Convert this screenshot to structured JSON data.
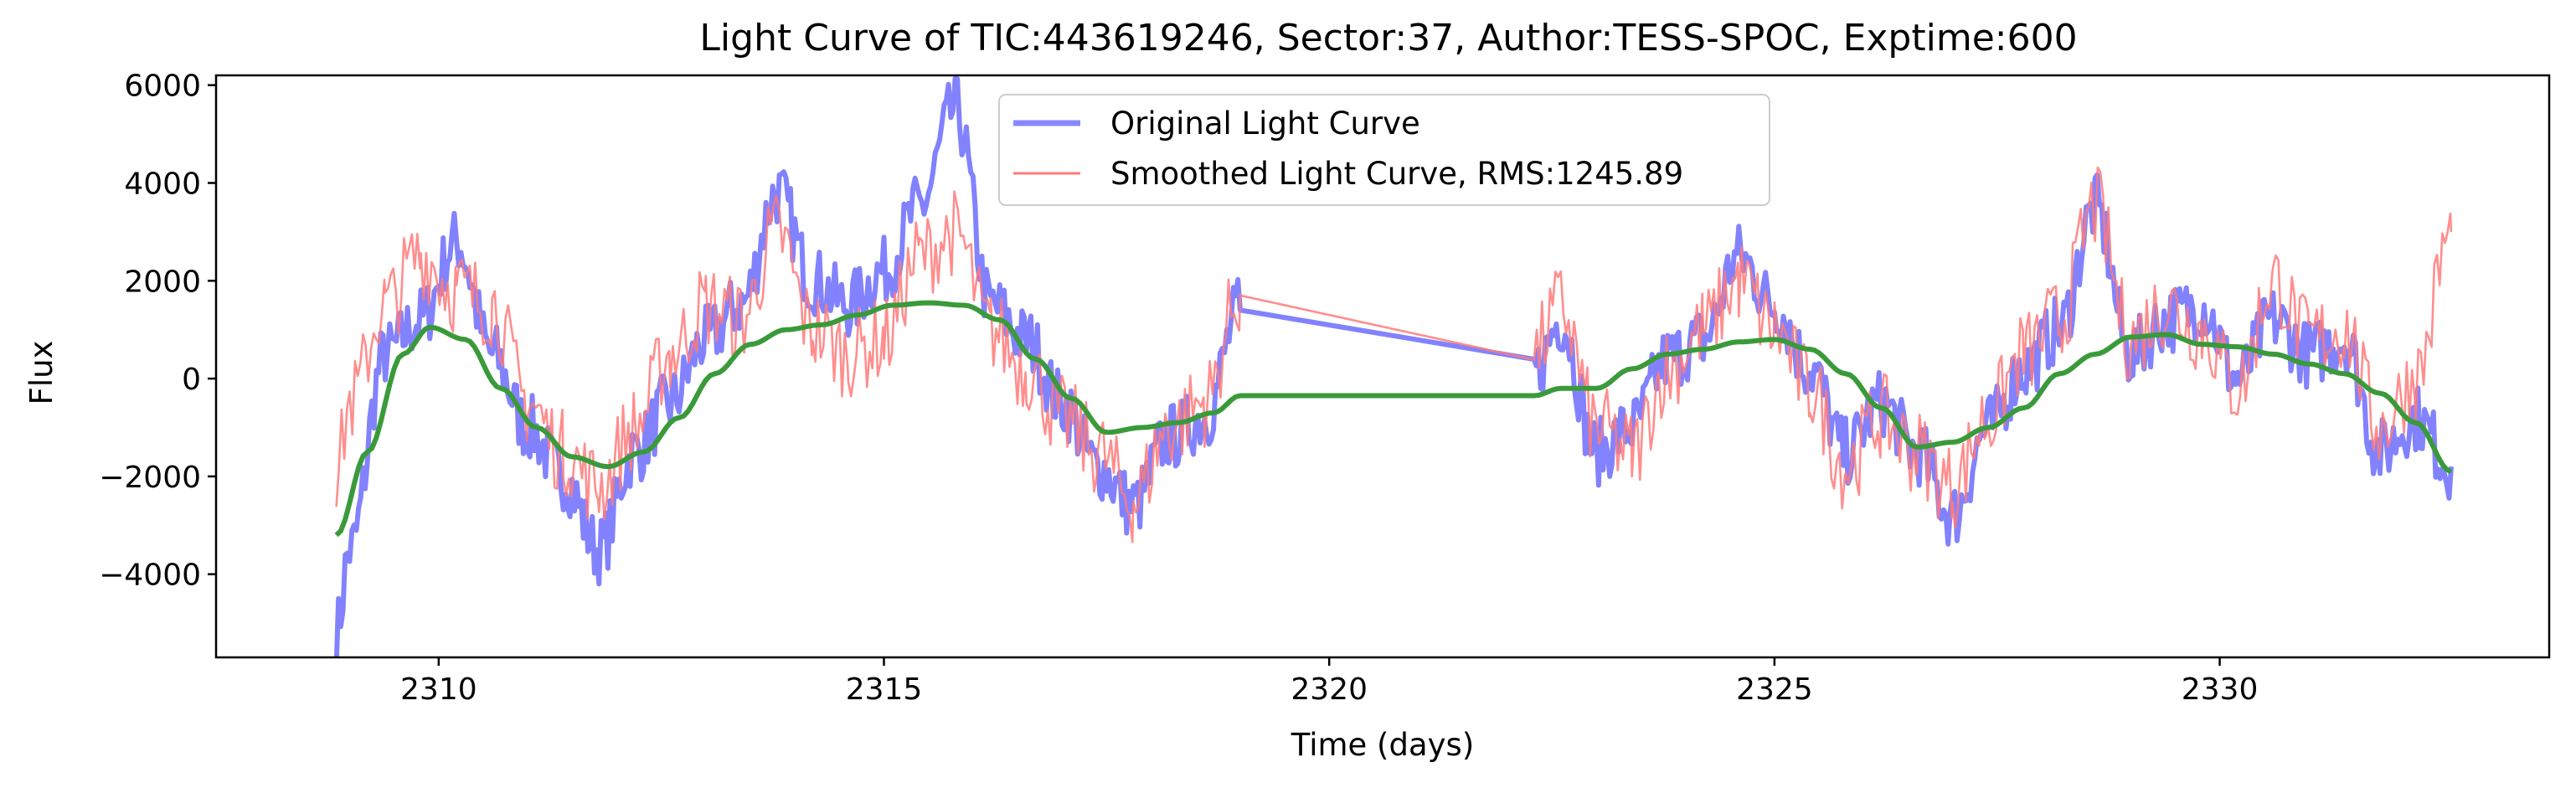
{
  "chart_data": {
    "type": "line",
    "title": "Light Curve of TIC:443619246, Sector:37, Author:TESS-SPOC, Exptime:600",
    "xlabel": "Time (days)",
    "ylabel": "Flux",
    "xlim": [
      2307.5,
      2333.7
    ],
    "ylim": [
      -5700,
      6200
    ],
    "x_ticks": [
      2310,
      2315,
      2320,
      2325,
      2330
    ],
    "y_ticks": [
      -4000,
      -2000,
      0,
      2000,
      4000,
      6000
    ],
    "legend_position": "upper-center",
    "grid": false,
    "gap": [
      2319.0,
      2322.3
    ],
    "series": [
      {
        "name": "Original Light Curve",
        "color": "#7b7bff",
        "approx_x": [
          2308.85,
          2309.0,
          2309.4,
          2309.8,
          2310.2,
          2310.6,
          2311.0,
          2311.4,
          2311.8,
          2312.2,
          2312.6,
          2313.0,
          2313.4,
          2313.8,
          2314.2,
          2314.6,
          2315.0,
          2315.4,
          2315.8,
          2316.2,
          2316.6,
          2317.0,
          2317.4,
          2317.8,
          2318.2,
          2318.6,
          2319.0,
          2322.3,
          2322.6,
          2323.0,
          2323.4,
          2323.8,
          2324.2,
          2324.6,
          2325.0,
          2325.4,
          2325.8,
          2326.2,
          2326.6,
          2327.0,
          2327.4,
          2327.8,
          2328.2,
          2328.6,
          2329.0,
          2329.4,
          2329.8,
          2330.2,
          2330.6,
          2331.0,
          2331.4,
          2331.8,
          2332.2,
          2332.6
        ],
        "approx_y": [
          -5200,
          -3500,
          500,
          1200,
          2800,
          500,
          -1000,
          -2000,
          -3500,
          -1500,
          -500,
          800,
          1500,
          3800,
          2000,
          1500,
          2200,
          3500,
          5500,
          1500,
          800,
          -500,
          -1800,
          -2600,
          -1200,
          -800,
          1400,
          100,
          1200,
          -1500,
          -1000,
          400,
          800,
          2500,
          1500,
          200,
          -1500,
          -500,
          -1500,
          -2800,
          -1000,
          200,
          1000,
          3500,
          500,
          1200,
          1500,
          0,
          1200,
          500,
          800,
          -1500,
          -800,
          -1800
        ]
      },
      {
        "name": "Smoothed Light Curve, RMS:1245.89",
        "color": "#ff7a7a",
        "approx_x": [
          2308.85,
          2309.0,
          2309.4,
          2309.8,
          2310.2,
          2310.6,
          2311.0,
          2311.4,
          2311.8,
          2312.2,
          2312.6,
          2313.0,
          2313.4,
          2313.8,
          2314.2,
          2314.6,
          2315.0,
          2315.4,
          2315.8,
          2316.2,
          2316.6,
          2317.0,
          2317.4,
          2317.8,
          2318.2,
          2318.6,
          2319.0,
          2322.3,
          2322.6,
          2323.0,
          2323.4,
          2323.8,
          2324.2,
          2324.6,
          2325.0,
          2325.4,
          2325.8,
          2326.2,
          2326.6,
          2327.0,
          2327.4,
          2327.8,
          2328.2,
          2328.6,
          2329.0,
          2329.4,
          2329.8,
          2330.2,
          2330.6,
          2331.0,
          2331.4,
          2331.8,
          2332.2,
          2332.6
        ],
        "approx_y": [
          -2000,
          -500,
          1500,
          2500,
          1800,
          1500,
          -500,
          -1500,
          -2200,
          -1000,
          500,
          1500,
          1200,
          3000,
          1000,
          500,
          800,
          2500,
          3000,
          1000,
          200,
          -800,
          -1500,
          -2500,
          -1000,
          -500,
          1700,
          500,
          1500,
          -1000,
          -1500,
          200,
          1000,
          2000,
          1000,
          -200,
          -1800,
          -800,
          -1500,
          -2200,
          -800,
          500,
          1200,
          3500,
          800,
          1500,
          1000,
          -200,
          2000,
          800,
          1000,
          -1000,
          0,
          3000
        ]
      },
      {
        "color": "#3a9a3a",
        "approx_x": [
          2308.85,
          2309.2,
          2309.6,
          2309.9,
          2310.3,
          2310.7,
          2311.1,
          2311.5,
          2311.9,
          2312.3,
          2312.7,
          2313.1,
          2313.5,
          2313.9,
          2314.3,
          2314.7,
          2315.1,
          2315.5,
          2315.9,
          2316.3,
          2316.7,
          2317.1,
          2317.5,
          2317.9,
          2318.3,
          2318.7,
          2319.0,
          2322.3,
          2322.6,
          2323.0,
          2323.4,
          2323.8,
          2324.2,
          2324.6,
          2325.0,
          2325.4,
          2325.8,
          2326.2,
          2326.6,
          2327.0,
          2327.4,
          2327.8,
          2328.2,
          2328.6,
          2329.0,
          2329.4,
          2329.8,
          2330.2,
          2330.6,
          2331.0,
          2331.4,
          2331.8,
          2332.2,
          2332.6
        ],
        "approx_y": [
          -3200,
          -1500,
          500,
          1050,
          800,
          -200,
          -1000,
          -1600,
          -1800,
          -1500,
          -800,
          100,
          700,
          1000,
          1100,
          1300,
          1500,
          1550,
          1500,
          1200,
          400,
          -400,
          -1100,
          -1000,
          -900,
          -700,
          -350,
          -350,
          -200,
          -200,
          200,
          500,
          600,
          750,
          800,
          600,
          100,
          -600,
          -1400,
          -1300,
          -1000,
          -600,
          100,
          500,
          850,
          900,
          700,
          650,
          500,
          300,
          100,
          -300,
          -900,
          -1900
        ]
      }
    ]
  }
}
